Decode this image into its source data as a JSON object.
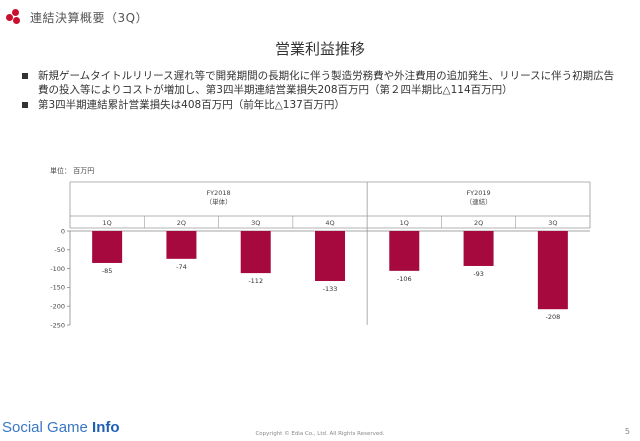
{
  "header": {
    "section_title": "連結決算概要（3Q）",
    "slide_title": "営業利益推移"
  },
  "bullets": [
    "新規ゲームタイトルリリース遅れ等で開発期間の長期化に伴う製造労務費や外注費用の追加発生、リリースに伴う初期広告費の投入等によりコストが増加し、第3四半期連結営業損失208百万円（第２四半期比△114百万円）",
    "第3四半期連結累計営業損失は408百万円（前年比△137百万円）"
  ],
  "unit_label": "単位： 百万円",
  "chart_data": {
    "type": "bar",
    "groups": [
      {
        "label_line1": "FY2018",
        "label_line2": "（単体）",
        "categories": [
          "1Q",
          "2Q",
          "3Q",
          "4Q"
        ]
      },
      {
        "label_line1": "FY2019",
        "label_line2": "（連結）",
        "categories": [
          "1Q",
          "2Q",
          "3Q"
        ]
      }
    ],
    "categories": [
      "1Q",
      "2Q",
      "3Q",
      "4Q",
      "1Q",
      "2Q",
      "3Q"
    ],
    "values": [
      -85,
      -74,
      -112,
      -133,
      -106,
      -93,
      -208
    ],
    "data_labels": [
      "-85",
      "-74",
      "-112",
      "-133",
      "-106",
      "-93",
      "-208"
    ],
    "ylim": [
      -250,
      0
    ],
    "yticks": [
      0,
      -50,
      -100,
      -150,
      -200,
      -250
    ],
    "bar_color": "#a6093d",
    "grid": false
  },
  "footer": {
    "brand_regular": "Social Game ",
    "brand_bold": "Info",
    "copyright": "Copyright © Edia Co., Ltd. All Rights Reserved.",
    "page_number": "5"
  }
}
